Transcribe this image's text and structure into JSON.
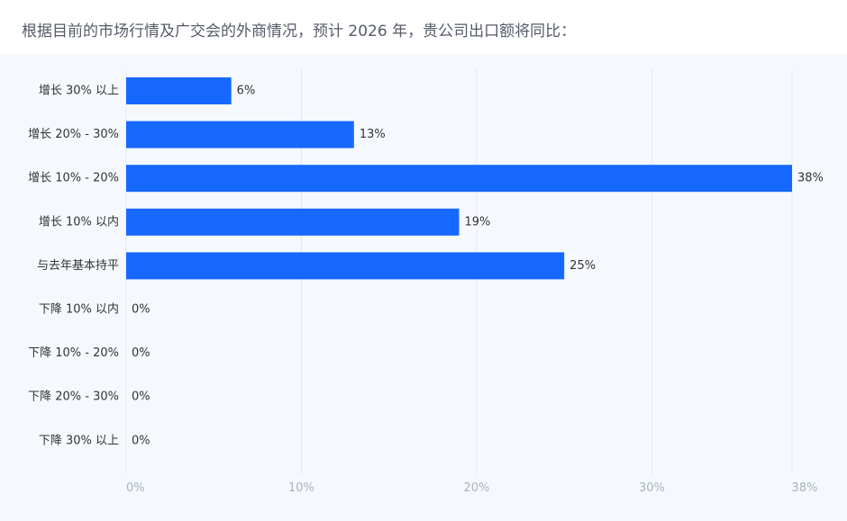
{
  "question": "根据目前的市场行情及广交会的外商情况，预计 2026 年，贵公司出口额将同比：",
  "colors": {
    "bar": "#1668ff",
    "grid": "#e2e8f0",
    "panel": "#f5f9fe"
  },
  "chart_data": {
    "type": "bar",
    "orientation": "horizontal",
    "categories": [
      "增长 30% 以上",
      "增长 20% - 30%",
      "增长 10% - 20%",
      "增长 10% 以内",
      "与去年基本持平",
      "下降 10% 以内",
      "下降 10% - 20%",
      "下降 20% - 30%",
      "下降 30% 以上"
    ],
    "values": [
      6,
      13,
      38,
      19,
      25,
      0,
      0,
      0,
      0
    ],
    "value_labels": [
      "6%",
      "13%",
      "38%",
      "19%",
      "25%",
      "0%",
      "0%",
      "0%",
      "0%"
    ],
    "xlim": [
      0,
      38
    ],
    "x_ticks": [
      0,
      10,
      20,
      30,
      38
    ],
    "x_tick_labels": [
      "0%",
      "10%",
      "20%",
      "30%",
      "38%"
    ],
    "grid": true
  }
}
